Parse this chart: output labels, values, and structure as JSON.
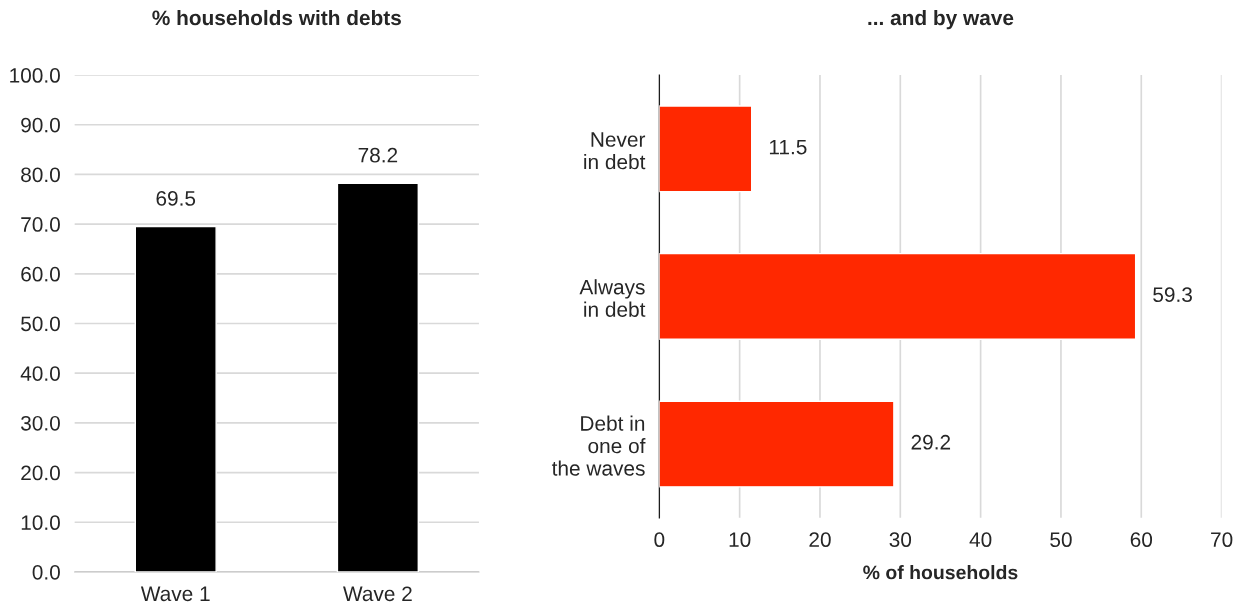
{
  "chart_data": [
    {
      "type": "bar",
      "title": "% households with debts",
      "categories": [
        "Wave 1",
        "Wave 2"
      ],
      "values": [
        69.5,
        78.2
      ],
      "color": "#000000",
      "ylim": [
        0,
        100
      ],
      "yticks": [
        {
          "value": 0,
          "label": "0.0"
        },
        {
          "value": 10,
          "label": "10.0"
        },
        {
          "value": 20,
          "label": "20.0"
        },
        {
          "value": 30,
          "label": "30.0"
        },
        {
          "value": 40,
          "label": "40.0"
        },
        {
          "value": 50,
          "label": "50.0"
        },
        {
          "value": 60,
          "label": "60.0"
        },
        {
          "value": 70,
          "label": "70.0"
        },
        {
          "value": 80,
          "label": "80.0"
        },
        {
          "value": 90,
          "label": "90.0"
        },
        {
          "value": 100,
          "label": "100.0"
        }
      ],
      "grid": "y",
      "data_labels": true
    },
    {
      "type": "bar",
      "orientation": "horizontal",
      "title": "... and by wave",
      "xlabel": "% of households",
      "categories": [
        "Never\nin debt",
        "Always\nin debt",
        "Debt in\none of\nthe waves"
      ],
      "values": [
        11.5,
        59.3,
        29.2
      ],
      "color": "#ff2800",
      "xlim": [
        0,
        70
      ],
      "xticks": [
        0,
        10,
        20,
        30,
        40,
        50,
        60,
        70
      ],
      "grid": "x",
      "data_labels": true
    }
  ]
}
